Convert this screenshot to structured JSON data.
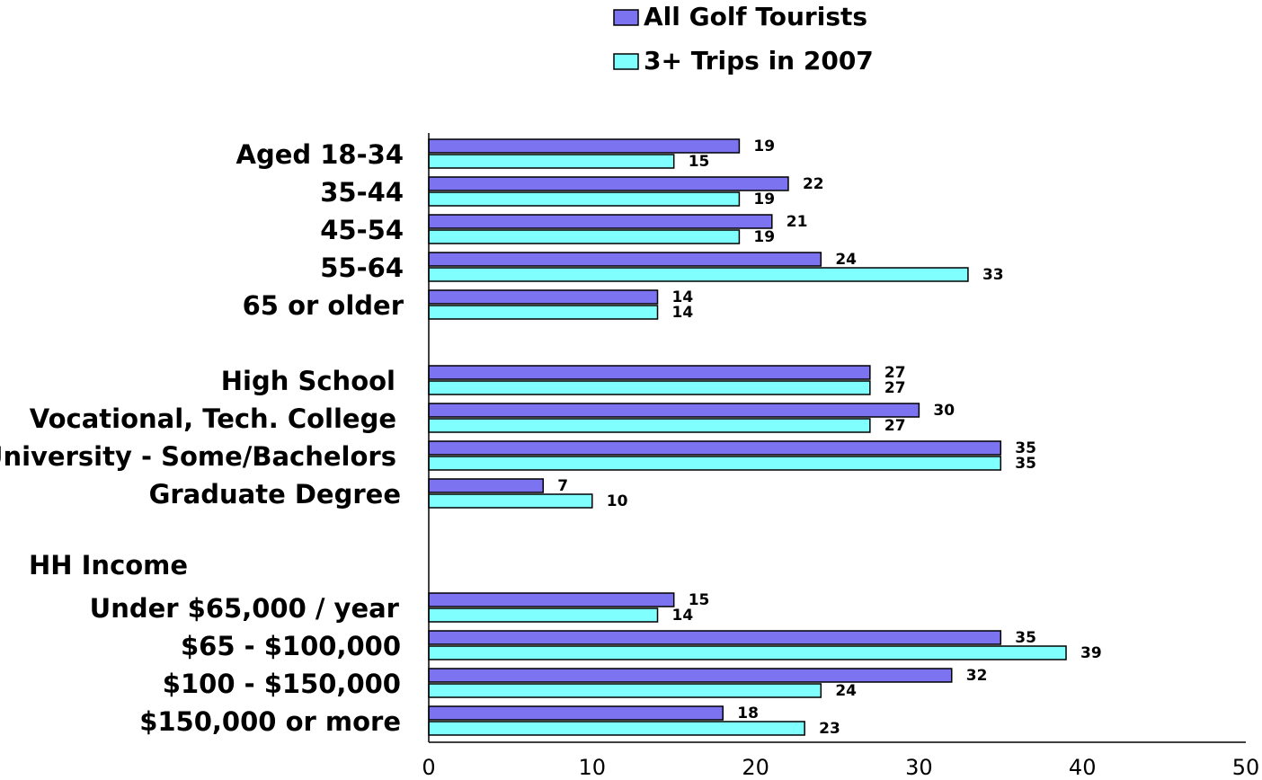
{
  "chart_data": {
    "type": "bar",
    "orientation": "horizontal",
    "title": "",
    "xlabel": "",
    "ylabel": "",
    "xlim": [
      0,
      50
    ],
    "x_ticks": [
      0,
      10,
      20,
      30,
      40,
      50
    ],
    "grid": false,
    "legend_position": "top-center",
    "series": [
      {
        "name": "All Golf Tourists",
        "color": "#7b73ef",
        "values": [
          19,
          22,
          21,
          24,
          14,
          27,
          30,
          35,
          7,
          15,
          35,
          32,
          18
        ]
      },
      {
        "name": "3+ Trips in 2007",
        "color": "#80ffff",
        "values": [
          15,
          19,
          19,
          33,
          14,
          27,
          27,
          35,
          10,
          14,
          39,
          24,
          23
        ]
      }
    ],
    "categories": [
      "Aged 18-34",
      "35-44",
      "45-54",
      "55-64",
      "65 or older",
      "High School",
      "Vocational, Tech. College",
      "University - Some/Bachelors",
      "Graduate Degree",
      "Under $65,000 / year",
      "$65 - $100,000",
      "$100 - $150,000",
      "$150,000 or more"
    ],
    "section_headers": [
      "HH Income"
    ]
  }
}
